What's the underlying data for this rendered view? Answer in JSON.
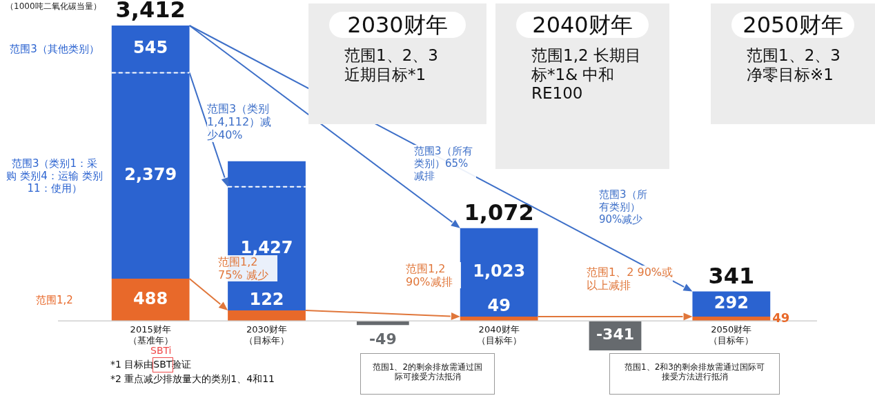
{
  "chart_data": {
    "type": "bar",
    "stacked": true,
    "ylabel": "（1000吨二氧化碳当量）",
    "categories": [
      "2015财年（基准年）",
      "2030财年（目标年）",
      null,
      "2040财年（目标年）",
      null,
      "2050财年（目标年）"
    ],
    "series": [
      {
        "name": "范围1,2",
        "color": "#e8692a",
        "values": [
          488,
          122,
          null,
          49,
          null,
          49
        ],
        "value_labels": [
          "488",
          "122",
          null,
          "49",
          null,
          "49"
        ]
      },
      {
        "name": "范围3（类别1：采购 类别4：运输 类别11：使用）",
        "color": "#2b63d0",
        "values": [
          2379,
          1427,
          null,
          1023,
          null,
          292
        ],
        "value_labels": [
          "2,379",
          "1,427",
          null,
          "1,023",
          null,
          "292"
        ]
      },
      {
        "name": "范围3（其他类别）",
        "color": "#2b63d0",
        "values": [
          545,
          295,
          null,
          null,
          null,
          null
        ],
        "value_labels": [
          "545",
          null,
          null,
          null,
          null,
          null
        ]
      },
      {
        "color": "#666a6e",
        "values": [
          null,
          null,
          -49,
          null,
          -341,
          null
        ],
        "value_labels": [
          null,
          null,
          "-49",
          null,
          "-341",
          null
        ]
      }
    ],
    "totals": [
      "3,412",
      null,
      null,
      "1,072",
      null,
      "341"
    ],
    "annotations": [
      "2030财年",
      "范围1、2、3 近期目标*1",
      "2040财年",
      "范围1,2 长期目标*1& 中和 RE100",
      "2050财年",
      "范围1、2、3净零目标※1",
      "范围3（类别1,4,112）减少40%",
      "范围3（所有类别）65%减排",
      "范围3（所有类别）90%减少",
      "范围1,2 75% 减少",
      "范围1,2 90%减排",
      "范围1、2 90%或以上减排",
      "范围1、2的剩余排放需通过国际可接受方法抵消",
      "范围1、2和3的剩余排放需通过国际可接受方法进行抵消",
      "*1 目标由SBT验证",
      "SBTi",
      "*2 重点减少排放量大的类别1、4和11"
    ]
  }
}
